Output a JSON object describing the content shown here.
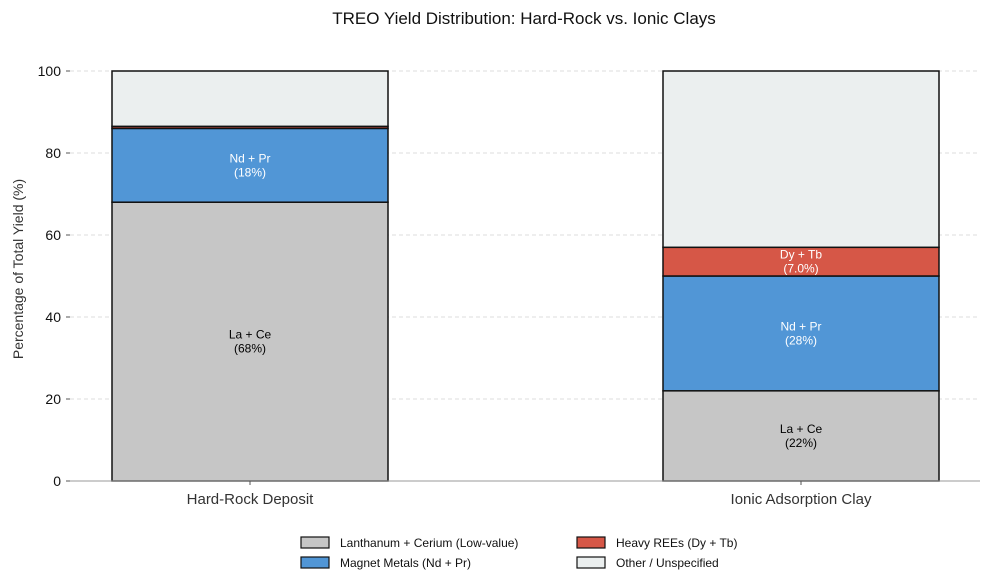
{
  "chart_data": {
    "type": "bar",
    "stacked": true,
    "title": "TREO Yield Distribution: Hard-Rock vs. Ionic Clays",
    "xlabel": "",
    "ylabel": "Percentage of Total Yield (%)",
    "ylim": [
      0,
      100
    ],
    "yticks": [
      0,
      20,
      40,
      60,
      80,
      100
    ],
    "grid": "y-dashed",
    "categories": [
      "Hard-Rock Deposit",
      "Ionic Adsorption Clay"
    ],
    "series": [
      {
        "name": "Lanthanum + Cerium (Low-value)",
        "color": "#c6c6c6",
        "values": [
          68,
          22
        ],
        "labels": [
          "La + Ce\n(68%)",
          "La + Ce\n(22%)"
        ],
        "label_color": "#000000"
      },
      {
        "name": "Magnet Metals (Nd + Pr)",
        "color": "#5196d6",
        "values": [
          18,
          28
        ],
        "labels": [
          "Nd + Pr\n(18%)",
          "Nd + Pr\n(28%)"
        ],
        "label_color": "#ffffff"
      },
      {
        "name": "Heavy REEs (Dy + Tb)",
        "color": "#d65747",
        "values": [
          0.5,
          7.0
        ],
        "labels": [
          "",
          "Dy + Tb\n(7.0%)"
        ],
        "label_color": "#ffffff"
      },
      {
        "name": "Other / Unspecified",
        "color": "#ebefef",
        "values": [
          13.5,
          43
        ],
        "labels": [
          "",
          ""
        ],
        "label_color": "#000000"
      }
    ],
    "legend": {
      "placement": "bottom-center",
      "columns": 2,
      "order": [
        0,
        1,
        2,
        3
      ]
    }
  }
}
